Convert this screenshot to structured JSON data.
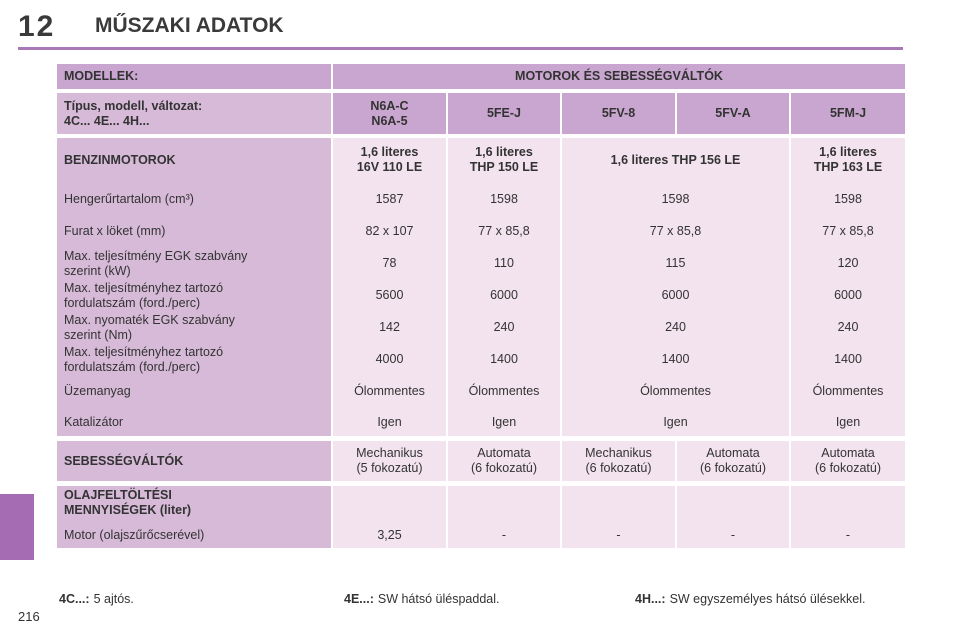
{
  "header": {
    "chapter_number": "12",
    "title": "MŰSZAKI ADATOK"
  },
  "page_number": "216",
  "table": {
    "col_models": "MODELLEK:",
    "col_engines": "MOTOROK ÉS SEBESSÉGVÁLTÓK",
    "type_label_line1": "Típus, modell, változat:",
    "type_label_line2": "4C... 4E... 4H...",
    "types": [
      {
        "line1": "N6A-C",
        "line2": "N6A-5"
      },
      {
        "line1": "5FE-J",
        "line2": ""
      },
      {
        "line1": "5FV-8",
        "line2": ""
      },
      {
        "line1": "5FV-A",
        "line2": ""
      },
      {
        "line1": "5FM-J",
        "line2": ""
      }
    ],
    "petrol_label": "BENZINMOTOROK",
    "engines": [
      {
        "line1": "1,6 literes",
        "line2": "16V 110 LE"
      },
      {
        "line1": "1,6 literes",
        "line2": "THP 150 LE"
      },
      {
        "line1": "1,6 literes THP 156 LE",
        "line2": ""
      },
      {
        "line1": "1,6 literes",
        "line2": "THP 163 LE"
      }
    ],
    "specs": [
      {
        "label1": "Hengerűrtartalom (cm³)",
        "label2": "",
        "values": [
          "1587",
          "1598",
          "1598",
          "1598"
        ]
      },
      {
        "label1": "Furat x löket (mm)",
        "label2": "",
        "values": [
          "82 x 107",
          "77 x 85,8",
          "77 x 85,8",
          "77 x 85,8"
        ]
      },
      {
        "label1": "Max. teljesítmény EGK szabvány",
        "label2": "szerint (kW)",
        "values": [
          "78",
          "110",
          "115",
          "120"
        ]
      },
      {
        "label1": "Max. teljesítményhez tartozó",
        "label2": "fordulatszám (ford./perc)",
        "values": [
          "5600",
          "6000",
          "6000",
          "6000"
        ]
      },
      {
        "label1": "Max. nyomaték EGK szabvány",
        "label2": "szerint (Nm)",
        "values": [
          "142",
          "240",
          "240",
          "240"
        ]
      },
      {
        "label1": "Max. teljesítményhez tartozó",
        "label2": "fordulatszám (ford./perc)",
        "values": [
          "4000",
          "1400",
          "1400",
          "1400"
        ]
      },
      {
        "label1": "Üzemanyag",
        "label2": "",
        "values": [
          "Ólommentes",
          "Ólommentes",
          "Ólommentes",
          "Ólommentes"
        ]
      },
      {
        "label1": "Katalizátor",
        "label2": "",
        "values": [
          "Igen",
          "Igen",
          "Igen",
          "Igen"
        ]
      }
    ],
    "gearbox_label": "SEBESSÉGVÁLTÓK",
    "gearboxes": [
      {
        "line1": "Mechanikus",
        "line2": "(5 fokozatú)"
      },
      {
        "line1": "Automata",
        "line2": "(6 fokozatú)"
      },
      {
        "line1": "Mechanikus",
        "line2": "(6 fokozatú)"
      },
      {
        "line1": "Automata",
        "line2": "(6 fokozatú)"
      },
      {
        "line1": "Automata",
        "line2": "(6 fokozatú)"
      }
    ],
    "oil_label_line1": "OLAJFELTÖLTÉSI",
    "oil_label_line2": "MENNYISÉGEK (liter)",
    "oil_row_label": "Motor (olajszűrőcserével)",
    "oil_values": [
      "3,25",
      "-",
      "-",
      "-",
      "-"
    ]
  },
  "footer": [
    {
      "key": "4C...:",
      "text": "5 ajtós."
    },
    {
      "key": "4E...:",
      "text": "SW hátsó üléspaddal."
    },
    {
      "key": "4H...:",
      "text": "SW egyszemélyes hátsó ülésekkel."
    }
  ],
  "colors": {
    "accent": "#a879b6",
    "header_bg": "#c9a6cf",
    "label_bg": "#d6bad8",
    "data_bg": "#f3e3ee"
  }
}
